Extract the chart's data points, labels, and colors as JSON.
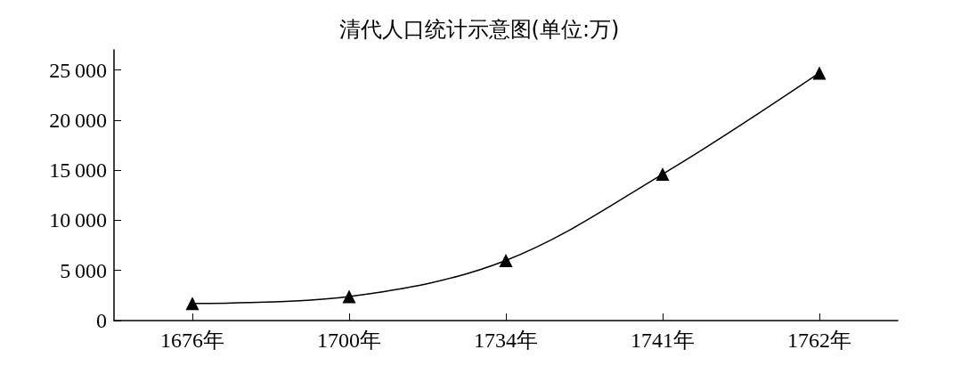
{
  "chart_data": {
    "type": "line",
    "title": "清代人口统计示意图(单位:万)",
    "categories": [
      "1676年",
      "1700年",
      "1734年",
      "1741年",
      "1762年"
    ],
    "series": [
      {
        "color": "#000000",
        "values": [
          1700,
          2400,
          6000,
          14600,
          24700
        ]
      }
    ],
    "ylim": [
      0,
      27000
    ],
    "yticks": [
      0,
      5000,
      10000,
      15000,
      20000,
      25000
    ],
    "marker": "triangle",
    "line_style": "solid",
    "grid": false
  }
}
